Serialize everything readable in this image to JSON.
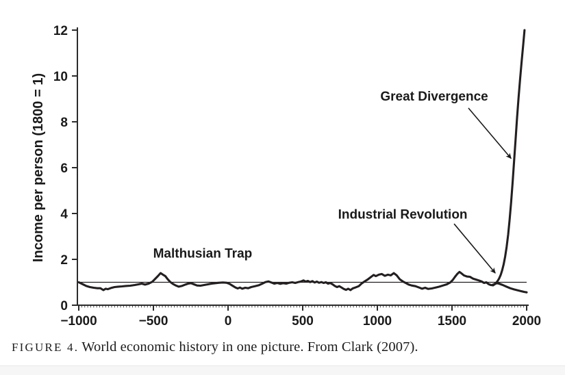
{
  "caption": {
    "label": "FIGURE 4.",
    "text": "World economic history in one picture. From Clark (2007)."
  },
  "colors": {
    "line": "#231f20",
    "axis": "#2b2b2b",
    "minor_tick": "#4a4a4a",
    "text": "#1a1a1a",
    "background": "#ffffff",
    "edge_strip": "#f6f6f6"
  },
  "chart_data": {
    "type": "line",
    "title": "",
    "xlabel": "",
    "ylabel": "Income per person (1800 = 1)",
    "xlim": [
      -1000,
      2000
    ],
    "ylim": [
      0,
      12
    ],
    "x_ticks": [
      -1000,
      -500,
      0,
      500,
      1000,
      1500,
      2000
    ],
    "y_ticks": [
      0,
      2,
      4,
      6,
      8,
      10,
      12
    ],
    "minor_x_tick_step": 20,
    "grid": false,
    "legend": "none",
    "reference_line_y": 1,
    "series": [
      {
        "name": "world-income-malthusian",
        "points": [
          [
            -1000,
            1.0
          ],
          [
            -975,
            0.92
          ],
          [
            -950,
            0.84
          ],
          [
            -925,
            0.79
          ],
          [
            -900,
            0.76
          ],
          [
            -875,
            0.74
          ],
          [
            -855,
            0.74
          ],
          [
            -835,
            0.66
          ],
          [
            -820,
            0.72
          ],
          [
            -805,
            0.7
          ],
          [
            -785,
            0.75
          ],
          [
            -760,
            0.79
          ],
          [
            -735,
            0.81
          ],
          [
            -710,
            0.82
          ],
          [
            -685,
            0.84
          ],
          [
            -655,
            0.85
          ],
          [
            -625,
            0.88
          ],
          [
            -600,
            0.91
          ],
          [
            -578,
            0.94
          ],
          [
            -556,
            0.9
          ],
          [
            -532,
            0.94
          ],
          [
            -508,
            1.02
          ],
          [
            -488,
            1.15
          ],
          [
            -470,
            1.27
          ],
          [
            -452,
            1.4
          ],
          [
            -436,
            1.33
          ],
          [
            -420,
            1.27
          ],
          [
            -404,
            1.13
          ],
          [
            -388,
            1.02
          ],
          [
            -370,
            0.93
          ],
          [
            -350,
            0.86
          ],
          [
            -330,
            0.81
          ],
          [
            -310,
            0.84
          ],
          [
            -290,
            0.89
          ],
          [
            -268,
            0.94
          ],
          [
            -248,
            0.96
          ],
          [
            -228,
            0.91
          ],
          [
            -208,
            0.86
          ],
          [
            -185,
            0.85
          ],
          [
            -160,
            0.88
          ],
          [
            -135,
            0.91
          ],
          [
            -110,
            0.94
          ],
          [
            -85,
            0.96
          ],
          [
            -60,
            0.98
          ],
          [
            -35,
            0.99
          ],
          [
            -10,
            0.98
          ],
          [
            10,
            0.93
          ],
          [
            30,
            0.85
          ],
          [
            50,
            0.77
          ],
          [
            65,
            0.73
          ],
          [
            80,
            0.77
          ],
          [
            95,
            0.72
          ],
          [
            115,
            0.76
          ],
          [
            135,
            0.74
          ],
          [
            155,
            0.79
          ],
          [
            180,
            0.83
          ],
          [
            205,
            0.87
          ],
          [
            230,
            0.94
          ],
          [
            250,
            1.01
          ],
          [
            270,
            1.04
          ],
          [
            290,
            0.99
          ],
          [
            310,
            0.94
          ],
          [
            330,
            0.97
          ],
          [
            350,
            0.93
          ],
          [
            370,
            0.96
          ],
          [
            390,
            0.94
          ],
          [
            410,
            0.98
          ],
          [
            430,
            1.0
          ],
          [
            450,
            0.97
          ],
          [
            470,
            1.01
          ],
          [
            490,
            1.04
          ],
          [
            505,
            1.08
          ],
          [
            520,
            1.03
          ],
          [
            535,
            1.06
          ],
          [
            550,
            1.01
          ],
          [
            565,
            1.05
          ],
          [
            580,
            0.99
          ],
          [
            595,
            1.03
          ],
          [
            610,
            0.98
          ],
          [
            625,
            1.01
          ],
          [
            640,
            0.97
          ],
          [
            655,
            1.0
          ],
          [
            670,
            0.94
          ],
          [
            685,
            0.97
          ],
          [
            700,
            0.91
          ],
          [
            715,
            0.84
          ],
          [
            730,
            0.79
          ],
          [
            745,
            0.83
          ],
          [
            760,
            0.77
          ],
          [
            775,
            0.71
          ],
          [
            790,
            0.67
          ],
          [
            805,
            0.72
          ],
          [
            820,
            0.66
          ],
          [
            835,
            0.73
          ],
          [
            855,
            0.78
          ],
          [
            875,
            0.83
          ],
          [
            895,
            0.95
          ],
          [
            915,
            1.04
          ],
          [
            935,
            1.12
          ],
          [
            955,
            1.22
          ],
          [
            975,
            1.32
          ],
          [
            990,
            1.27
          ],
          [
            1010,
            1.33
          ],
          [
            1030,
            1.36
          ],
          [
            1050,
            1.28
          ],
          [
            1070,
            1.33
          ],
          [
            1090,
            1.3
          ],
          [
            1110,
            1.4
          ],
          [
            1130,
            1.3
          ],
          [
            1150,
            1.13
          ],
          [
            1170,
            1.04
          ],
          [
            1190,
            0.97
          ],
          [
            1210,
            0.9
          ],
          [
            1230,
            0.86
          ],
          [
            1255,
            0.83
          ],
          [
            1280,
            0.77
          ],
          [
            1300,
            0.72
          ],
          [
            1320,
            0.76
          ],
          [
            1340,
            0.71
          ],
          [
            1365,
            0.73
          ],
          [
            1390,
            0.77
          ],
          [
            1415,
            0.81
          ],
          [
            1440,
            0.86
          ],
          [
            1465,
            0.91
          ],
          [
            1490,
            1.0
          ],
          [
            1505,
            1.1
          ],
          [
            1520,
            1.24
          ],
          [
            1535,
            1.36
          ],
          [
            1550,
            1.45
          ],
          [
            1565,
            1.38
          ],
          [
            1580,
            1.3
          ],
          [
            1600,
            1.25
          ],
          [
            1620,
            1.24
          ],
          [
            1640,
            1.16
          ],
          [
            1660,
            1.12
          ],
          [
            1680,
            1.08
          ],
          [
            1700,
            1.03
          ],
          [
            1715,
            0.97
          ],
          [
            1730,
            1.0
          ],
          [
            1745,
            0.92
          ],
          [
            1760,
            0.88
          ],
          [
            1775,
            0.87
          ],
          [
            1790,
            0.93
          ],
          [
            1800,
            0.96
          ],
          [
            1815,
            0.94
          ],
          [
            1840,
            0.88
          ],
          [
            1865,
            0.81
          ],
          [
            1890,
            0.74
          ],
          [
            1915,
            0.69
          ],
          [
            1940,
            0.65
          ],
          [
            1965,
            0.61
          ],
          [
            1985,
            0.58
          ],
          [
            2000,
            0.56
          ]
        ]
      },
      {
        "name": "great-divergence-rise",
        "points": [
          [
            1772,
            0.89
          ],
          [
            1784,
            0.92
          ],
          [
            1796,
            0.98
          ],
          [
            1806,
            1.06
          ],
          [
            1816,
            1.17
          ],
          [
            1826,
            1.32
          ],
          [
            1836,
            1.52
          ],
          [
            1846,
            1.78
          ],
          [
            1856,
            2.12
          ],
          [
            1866,
            2.55
          ],
          [
            1876,
            3.08
          ],
          [
            1886,
            3.72
          ],
          [
            1896,
            4.48
          ],
          [
            1906,
            5.35
          ],
          [
            1916,
            6.3
          ],
          [
            1926,
            7.25
          ],
          [
            1936,
            8.18
          ],
          [
            1946,
            9.05
          ],
          [
            1956,
            9.85
          ],
          [
            1966,
            10.6
          ],
          [
            1976,
            11.3
          ],
          [
            1986,
            12.0
          ]
        ]
      }
    ],
    "annotations": [
      {
        "text": "Malthusian Trap",
        "x": -170,
        "y": 2.25,
        "arrow": null
      },
      {
        "text": "Industrial Revolution",
        "x": 1170,
        "y": 3.95,
        "arrow": {
          "from": [
            1514,
            3.55
          ],
          "to": [
            1790,
            1.4
          ]
        }
      },
      {
        "text": "Great Divergence",
        "x": 1381,
        "y": 9.1,
        "arrow": {
          "from": [
            1610,
            8.6
          ],
          "to": [
            1896,
            6.4
          ]
        }
      }
    ]
  }
}
